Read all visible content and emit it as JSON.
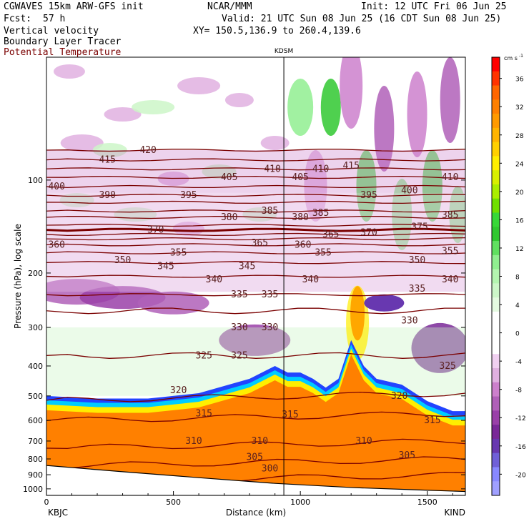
{
  "header": {
    "model": "CGWAVES 15km ARW-GFS init",
    "org": "NCAR/MMM",
    "init": "Init: 12 UTC Fri 06 Jun 25",
    "fcst_label": "Fcst:",
    "fcst_value": "57 h",
    "valid": "Valid: 21 UTC Sun 08 Jun 25 (16 CDT Sun 08 Jun 25)",
    "xy": "XY= 150.5,136.9 to 260.4,139.6",
    "field1": "Vertical velocity",
    "field2": "Boundary Layer Tracer",
    "field3": "Potential Temperature",
    "field3_color": "#7a0000",
    "marker_label": "KDSM"
  },
  "chart_data": {
    "type": "heatmap",
    "xlabel": "Distance (km)",
    "ylabel": "Pressure (hPa), log scale",
    "xlim": [
      0,
      1650
    ],
    "ylim": [
      1050,
      40
    ],
    "y_scale": "log",
    "x_ticks": [
      0,
      500,
      1000,
      1500
    ],
    "y_ticks": [
      100,
      200,
      300,
      400,
      500,
      600,
      700,
      800,
      900,
      1000
    ],
    "x_end_labels": [
      "KBJC",
      "KIND"
    ],
    "marker": {
      "label": "KDSM",
      "x": 935
    },
    "colorbar": {
      "unit": "cm s",
      "unit_exp": "-1",
      "levels": [
        {
          "label": "",
          "color": "#ff0000"
        },
        {
          "label": "36",
          "color": "#ff3300"
        },
        {
          "label": "",
          "color": "#ff6600"
        },
        {
          "label": "32",
          "color": "#ff8000"
        },
        {
          "label": "",
          "color": "#ff9a00"
        },
        {
          "label": "28",
          "color": "#ffb400"
        },
        {
          "label": "",
          "color": "#ffd000"
        },
        {
          "label": "24",
          "color": "#ffee00"
        },
        {
          "label": "",
          "color": "#d8f000"
        },
        {
          "label": "20",
          "color": "#aaee00"
        },
        {
          "label": "",
          "color": "#70e000"
        },
        {
          "label": "16",
          "color": "#38d838"
        },
        {
          "label": "",
          "color": "#30c830"
        },
        {
          "label": "12",
          "color": "#60e060"
        },
        {
          "label": "",
          "color": "#90ee90"
        },
        {
          "label": "8",
          "color": "#b4f4b0"
        },
        {
          "label": "",
          "color": "#ccf6c8"
        },
        {
          "label": "4",
          "color": "#e4fae0"
        },
        {
          "label": "",
          "color": "#ffffff"
        },
        {
          "label": "0",
          "color": "#ffffff"
        },
        {
          "label": "",
          "color": "#ffffff"
        },
        {
          "label": "-4",
          "color": "#f0d0f0"
        },
        {
          "label": "",
          "color": "#e0b0e0"
        },
        {
          "label": "-8",
          "color": "#cc80cc"
        },
        {
          "label": "",
          "color": "#b060b8"
        },
        {
          "label": "-12",
          "color": "#9a40a8"
        },
        {
          "label": "",
          "color": "#7a2898"
        },
        {
          "label": "-16",
          "color": "#6838b0"
        },
        {
          "label": "",
          "color": "#7060d8"
        },
        {
          "label": "-20",
          "color": "#8888ff"
        },
        {
          "label": "",
          "color": "#a0a0ff"
        }
      ]
    },
    "theta_contours": [
      {
        "value": "300",
        "p": 900
      },
      {
        "value": "305",
        "p": 800
      },
      {
        "value": "310",
        "p": 700
      },
      {
        "value": "315",
        "p": 570
      },
      {
        "value": "320",
        "p": 490
      },
      {
        "value": "325",
        "p": 370
      },
      {
        "value": "330",
        "p": 265
      },
      {
        "value": "335",
        "p": 235
      },
      {
        "value": "340",
        "p": 205
      },
      {
        "value": "345",
        "p": 185
      },
      {
        "value": "350",
        "p": 172
      },
      {
        "value": "355",
        "p": 162
      },
      {
        "value": "360",
        "p": 155
      },
      {
        "value": "365",
        "p": 150
      },
      {
        "value": "370",
        "p": 145
      },
      {
        "value": "375",
        "p": 140
      },
      {
        "value": "380",
        "p": 132
      },
      {
        "value": "385",
        "p": 126
      },
      {
        "value": "390",
        "p": 118
      },
      {
        "value": "395",
        "p": 112
      },
      {
        "value": "400",
        "p": 105
      },
      {
        "value": "405",
        "p": 98
      },
      {
        "value": "410",
        "p": 92
      },
      {
        "value": "415",
        "p": 86
      },
      {
        "value": "420",
        "p": 80
      }
    ],
    "theta_label_positions": [
      {
        "text": "415",
        "x": 240,
        "p": 86
      },
      {
        "text": "420",
        "x": 400,
        "p": 80
      },
      {
        "text": "400",
        "x": 40,
        "p": 105
      },
      {
        "text": "390",
        "x": 240,
        "p": 112
      },
      {
        "text": "395",
        "x": 560,
        "p": 112
      },
      {
        "text": "405",
        "x": 720,
        "p": 98
      },
      {
        "text": "410",
        "x": 890,
        "p": 92
      },
      {
        "text": "405",
        "x": 1000,
        "p": 98
      },
      {
        "text": "410",
        "x": 1080,
        "p": 92
      },
      {
        "text": "415",
        "x": 1200,
        "p": 90
      },
      {
        "text": "395",
        "x": 1270,
        "p": 112
      },
      {
        "text": "400",
        "x": 1430,
        "p": 108
      },
      {
        "text": "410",
        "x": 1590,
        "p": 98
      },
      {
        "text": "380",
        "x": 720,
        "p": 132
      },
      {
        "text": "385",
        "x": 880,
        "p": 126
      },
      {
        "text": "380",
        "x": 1000,
        "p": 132
      },
      {
        "text": "385",
        "x": 1080,
        "p": 128
      },
      {
        "text": "385",
        "x": 1590,
        "p": 130
      },
      {
        "text": "370",
        "x": 430,
        "p": 145
      },
      {
        "text": "375",
        "x": 1470,
        "p": 142
      },
      {
        "text": "370",
        "x": 1270,
        "p": 148
      },
      {
        "text": "365",
        "x": 1120,
        "p": 150
      },
      {
        "text": "360",
        "x": 40,
        "p": 162
      },
      {
        "text": "365",
        "x": 840,
        "p": 160
      },
      {
        "text": "360",
        "x": 1010,
        "p": 162
      },
      {
        "text": "355",
        "x": 520,
        "p": 172
      },
      {
        "text": "355",
        "x": 1090,
        "p": 172
      },
      {
        "text": "355",
        "x": 1590,
        "p": 170
      },
      {
        "text": "350",
        "x": 300,
        "p": 182
      },
      {
        "text": "345",
        "x": 470,
        "p": 190
      },
      {
        "text": "345",
        "x": 790,
        "p": 190
      },
      {
        "text": "350",
        "x": 1460,
        "p": 182
      },
      {
        "text": "340",
        "x": 660,
        "p": 210
      },
      {
        "text": "340",
        "x": 1040,
        "p": 210
      },
      {
        "text": "340",
        "x": 1590,
        "p": 210
      },
      {
        "text": "335",
        "x": 760,
        "p": 235
      },
      {
        "text": "335",
        "x": 880,
        "p": 235
      },
      {
        "text": "335",
        "x": 1460,
        "p": 225
      },
      {
        "text": "330",
        "x": 760,
        "p": 300
      },
      {
        "text": "330",
        "x": 880,
        "p": 300
      },
      {
        "text": "330",
        "x": 1430,
        "p": 285
      },
      {
        "text": "325",
        "x": 620,
        "p": 370
      },
      {
        "text": "325",
        "x": 760,
        "p": 370
      },
      {
        "text": "325",
        "x": 1580,
        "p": 400
      },
      {
        "text": "320",
        "x": 520,
        "p": 480
      },
      {
        "text": "320",
        "x": 1390,
        "p": 500
      },
      {
        "text": "315",
        "x": 620,
        "p": 570
      },
      {
        "text": "315",
        "x": 960,
        "p": 575
      },
      {
        "text": "315",
        "x": 1520,
        "p": 600
      },
      {
        "text": "310",
        "x": 580,
        "p": 700
      },
      {
        "text": "310",
        "x": 840,
        "p": 700
      },
      {
        "text": "310",
        "x": 1250,
        "p": 700
      },
      {
        "text": "305",
        "x": 820,
        "p": 790
      },
      {
        "text": "305",
        "x": 1420,
        "p": 780
      },
      {
        "text": "300",
        "x": 880,
        "p": 860
      }
    ]
  }
}
